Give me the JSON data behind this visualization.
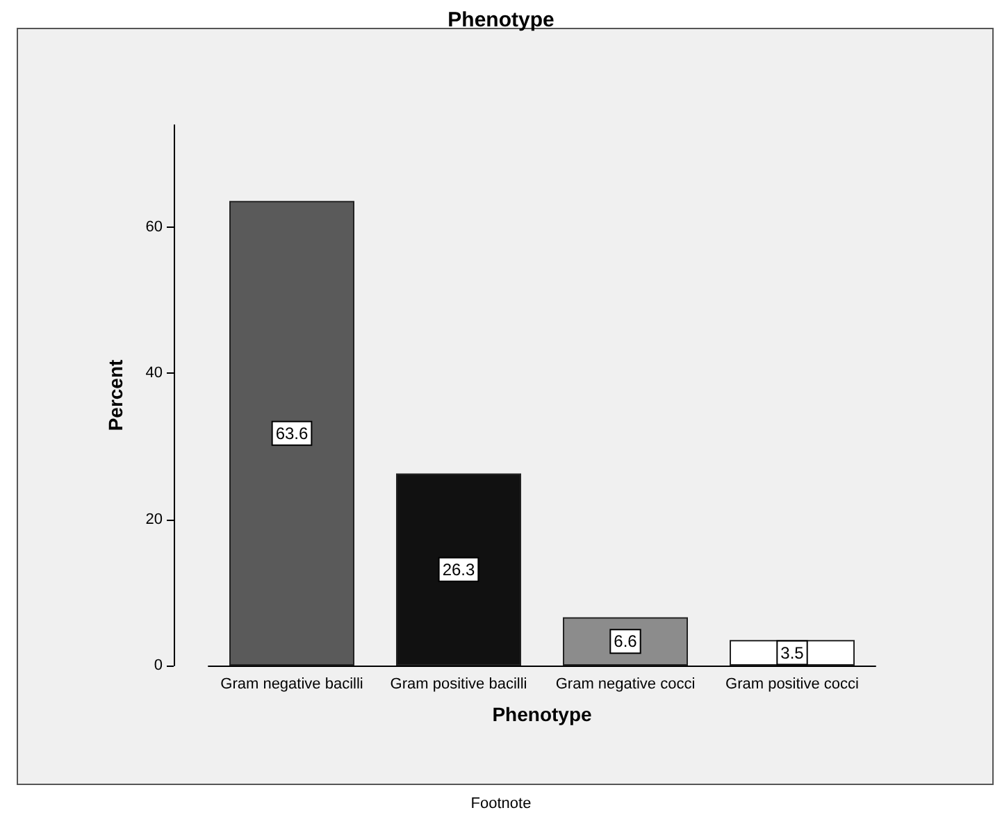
{
  "chart_data": {
    "type": "bar",
    "title": "Phenotype",
    "xlabel": "Phenotype",
    "ylabel": "Percent",
    "categories": [
      "Gram negative bacilli",
      "Gram positive bacilli",
      "Gram negative cocci",
      "Gram positive cocci"
    ],
    "values": [
      63.6,
      26.3,
      6.6,
      3.5
    ],
    "colors": [
      "#5a5a5a",
      "#111111",
      "#8c8c8c",
      "#ffffff"
    ],
    "ylim": [
      0,
      74
    ],
    "yticks": [
      0,
      20,
      40,
      60
    ],
    "grid": false,
    "data_labels": true,
    "annotations": [
      "Footnote"
    ]
  }
}
